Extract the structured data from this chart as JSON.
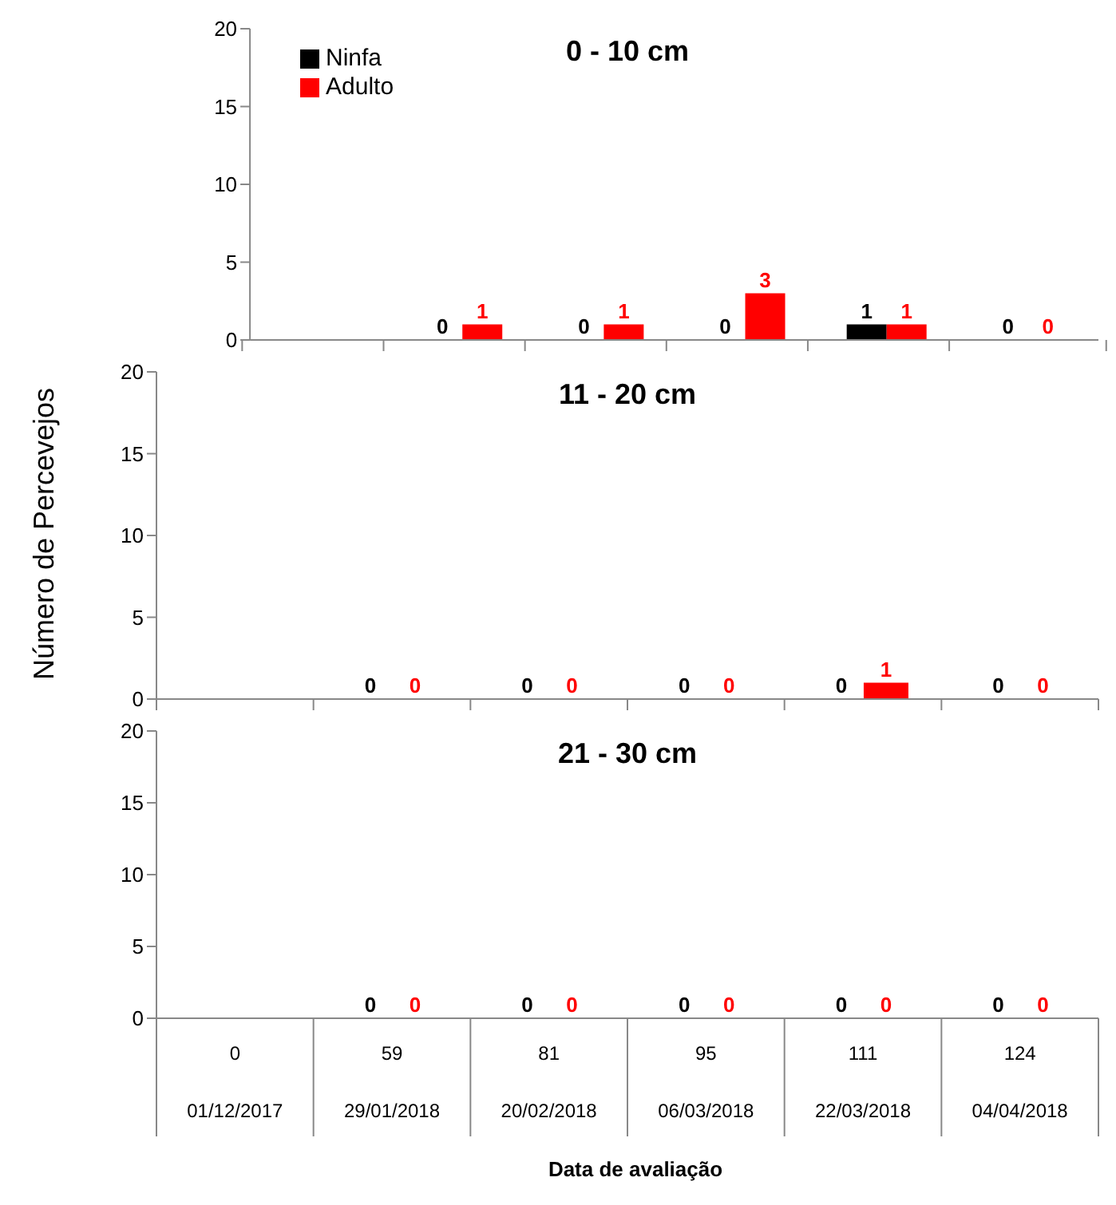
{
  "chart_data": [
    {
      "type": "bar",
      "title": "0 - 10 cm",
      "categories": [
        null,
        null,
        null,
        null,
        null,
        null
      ],
      "series": [
        {
          "name": "Ninfa",
          "color": "#000000",
          "values": [
            null,
            0,
            0,
            0,
            1,
            0
          ]
        },
        {
          "name": "Adulto",
          "color": "#ff0000",
          "values": [
            null,
            1,
            1,
            3,
            1,
            0
          ]
        }
      ],
      "ylim": [
        0,
        20
      ],
      "yticks": [
        0,
        5,
        10,
        15,
        20
      ],
      "grid": false,
      "legend": "top left",
      "data_labels": true,
      "tick_labels": "y"
    },
    {
      "type": "bar",
      "title": "11 - 20 cm",
      "ylabel": "Número de Percevejos",
      "categories": [
        null,
        null,
        null,
        null,
        null,
        null
      ],
      "series": [
        {
          "color": "#000000",
          "values": [
            null,
            0,
            0,
            0,
            0,
            0
          ]
        },
        {
          "color": "#ff0000",
          "values": [
            null,
            0,
            0,
            0,
            1,
            0
          ]
        }
      ],
      "ylim": [
        0,
        20
      ],
      "yticks": [
        0,
        5,
        10,
        15,
        20
      ],
      "grid": false,
      "data_labels": true,
      "tick_labels": "y"
    },
    {
      "type": "bar",
      "title": "21 - 30 cm",
      "xlabel": "Data de avaliação",
      "categories": [
        "0\n01/12/2017",
        "59\n29/01/2018",
        "81\n20/02/2018",
        "95\n06/03/2018",
        "111\n22/03/2018",
        "124\n04/04/2018"
      ],
      "series": [
        {
          "color": "#000000",
          "values": [
            null,
            0,
            0,
            0,
            0,
            0
          ]
        },
        {
          "color": "#ff0000",
          "values": [
            null,
            0,
            0,
            0,
            0,
            0
          ]
        }
      ],
      "ylim": [
        0,
        20
      ],
      "yticks": [
        0,
        5,
        10,
        15,
        20
      ],
      "grid": false,
      "data_labels": true
    }
  ]
}
